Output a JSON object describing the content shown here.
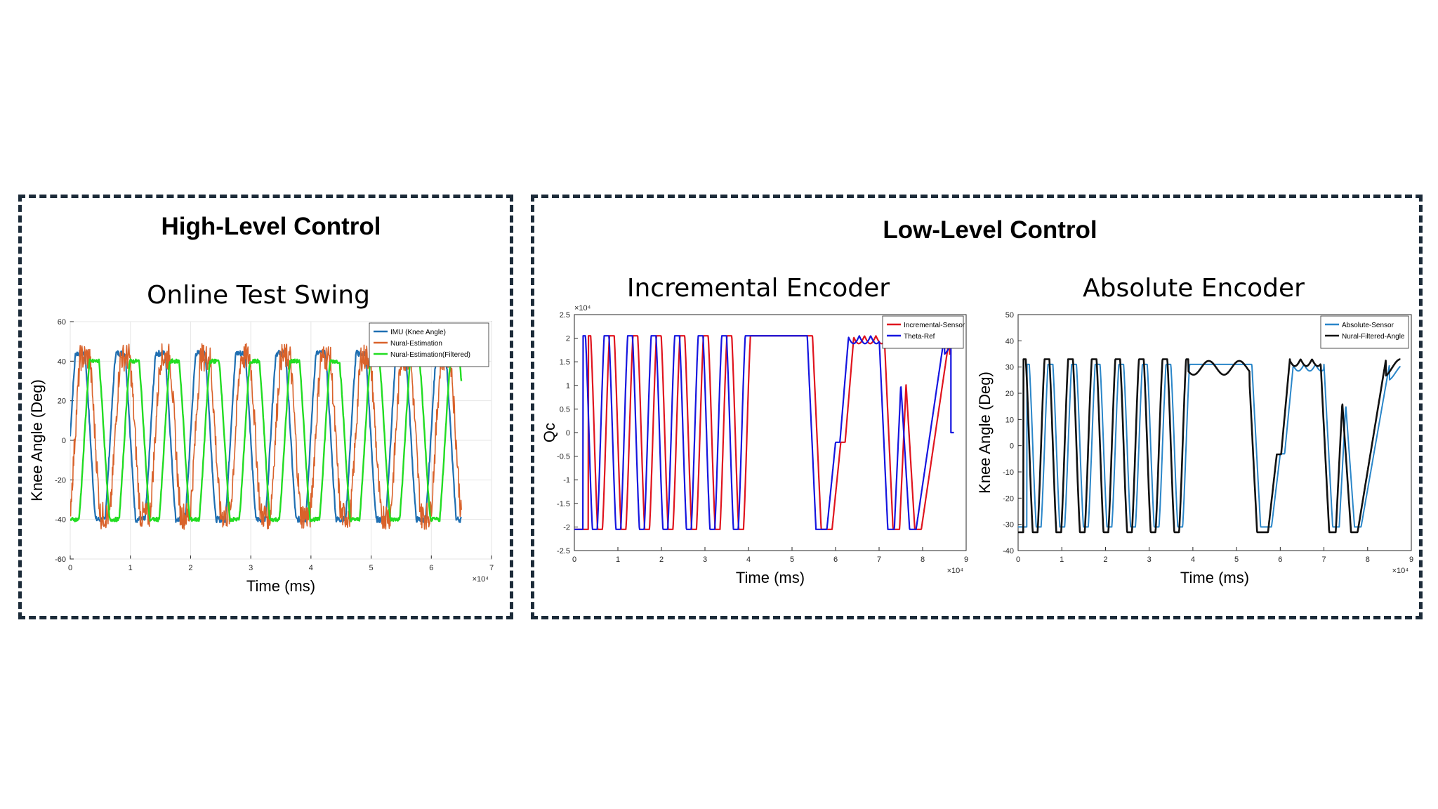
{
  "panels": {
    "high_heading": "High-Level Control",
    "low_heading": "Low-Level Control"
  },
  "charts": [
    {
      "id": "chart1",
      "title": "Online Test Swing",
      "xlabel": "Time (ms)",
      "ylabel": "Knee Angle (Deg)",
      "x_multiplier": "×10⁴",
      "grid": true,
      "legend_placement": "top-right",
      "xlim": [
        0,
        7
      ],
      "ylim": [
        -60,
        60
      ],
      "xticks": [
        "0",
        "1",
        "2",
        "3",
        "4",
        "5",
        "6",
        "7"
      ],
      "yticks": [
        "-60",
        "-40",
        "-20",
        "0",
        "20",
        "40",
        "60"
      ],
      "series": [
        {
          "name": "IMU (Knee Angle)",
          "color": "#1f6fb2",
          "width": 2.2,
          "noise": 1.5,
          "phase": 0.0,
          "amp": 42,
          "offset": 2
        },
        {
          "name": "Nural-Estimation",
          "color": "#d9622b",
          "width": 1.6,
          "noise": 7,
          "phase": -0.12,
          "amp": 40,
          "offset": 2
        },
        {
          "name": "Nural-Estimation(Filtered)",
          "color": "#22dd22",
          "width": 2.4,
          "noise": 1,
          "phase": -0.35,
          "amp": 40,
          "offset": 0
        }
      ],
      "period": 0.666,
      "x_end": 6.5
    },
    {
      "id": "chart2",
      "title": "Incremental Encoder",
      "xlabel": "Time (ms)",
      "ylabel": "Qc",
      "x_multiplier": "×10⁴",
      "y_multiplier": "×10⁴",
      "grid": false,
      "legend_placement": "top-right",
      "xlim": [
        0,
        9
      ],
      "ylim": [
        -2.5,
        2.5
      ],
      "xticks": [
        "0",
        "1",
        "2",
        "3",
        "4",
        "5",
        "6",
        "7",
        "8",
        "9"
      ],
      "yticks": [
        "-2.5",
        "-2",
        "-1.5",
        "-1",
        "-0.5",
        "0",
        "0.5",
        "1",
        "1.5",
        "2",
        "2.5"
      ],
      "series": [
        {
          "name": "Incremental-Sensor",
          "color": "#e0141e",
          "width": 2.2
        },
        {
          "name": "Theta-Ref",
          "color": "#1515e0",
          "width": 2.2
        }
      ]
    },
    {
      "id": "chart3",
      "title": "Absolute Encoder",
      "xlabel": "Time (ms)",
      "ylabel": "Knee Angle (Deg)",
      "x_multiplier": "×10⁴",
      "grid": false,
      "legend_placement": "top-right",
      "xlim": [
        0,
        9
      ],
      "ylim": [
        -40,
        50
      ],
      "xticks": [
        "0",
        "1",
        "2",
        "3",
        "4",
        "5",
        "6",
        "7",
        "8",
        "9"
      ],
      "yticks": [
        "-40",
        "-30",
        "-20",
        "-10",
        "0",
        "10",
        "20",
        "30",
        "40",
        "50"
      ],
      "series": [
        {
          "name": "Absolute-Sensor",
          "color": "#2a86c9",
          "width": 2
        },
        {
          "name": "Nural-Filtered-Angle",
          "color": "#111111",
          "width": 2.6
        }
      ]
    }
  ]
}
